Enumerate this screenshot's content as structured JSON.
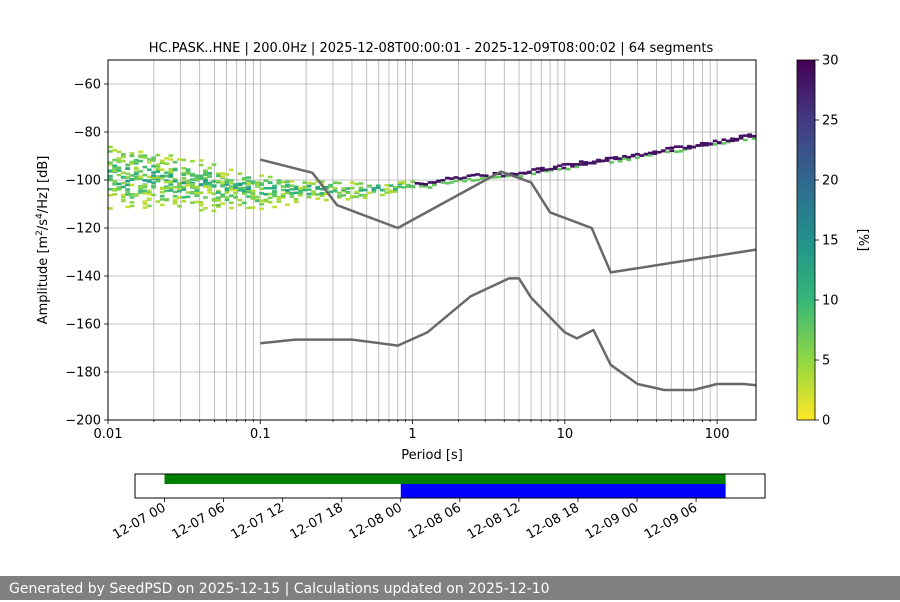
{
  "chart_data": [
    {
      "type": "heatmap",
      "title": "HC.PASK..HNE | 200.0Hz | 2025-12-08T00:00:01 - 2025-12-09T08:00:02 | 64 segments",
      "xlabel": "Period [s]",
      "ylabel_parts": [
        "Amplitude [m",
        "2",
        "/s",
        "4",
        "/Hz] [dB]"
      ],
      "x_scale": "log",
      "xlim": [
        0.01,
        180
      ],
      "ylim": [
        -200,
        -50
      ],
      "x_ticks": [
        0.01,
        0.1,
        1,
        10,
        100
      ],
      "x_tick_labels": [
        "0.01",
        "0.1",
        "1",
        "10",
        "100"
      ],
      "y_ticks": [
        -200,
        -180,
        -160,
        -140,
        -120,
        -100,
        -80,
        -60
      ],
      "y_tick_labels": [
        "−200",
        "−180",
        "−160",
        "−140",
        "−120",
        "−100",
        "−80",
        "−60"
      ],
      "grid": "vertical log lines",
      "colormap": "viridis_r",
      "colorbar": {
        "label": "[%]",
        "range": [
          0,
          30
        ],
        "ticks": [
          0,
          5,
          10,
          15,
          20,
          25,
          30
        ],
        "tick_labels": [
          "0",
          "5",
          "10",
          "15",
          "20",
          "25",
          "30"
        ],
        "colors": [
          "#fde725",
          "#90d743",
          "#35b779",
          "#21918c",
          "#31688e",
          "#443983",
          "#440154"
        ]
      },
      "density_band": [
        {
          "period": 0.01,
          "center": -98,
          "spread": 16
        },
        {
          "period": 0.02,
          "center": -100,
          "spread": 15
        },
        {
          "period": 0.05,
          "center": -103,
          "spread": 13
        },
        {
          "period": 0.1,
          "center": -104,
          "spread": 9
        },
        {
          "period": 0.2,
          "center": -104,
          "spread": 6
        },
        {
          "period": 0.5,
          "center": -104,
          "spread": 4
        },
        {
          "period": 1,
          "center": -102,
          "spread": 3
        },
        {
          "period": 2,
          "center": -99,
          "spread": 2
        },
        {
          "period": 5,
          "center": -97,
          "spread": 1.5
        },
        {
          "period": 10,
          "center": -94,
          "spread": 1.5
        },
        {
          "period": 20,
          "center": -91,
          "spread": 1.5
        },
        {
          "period": 50,
          "center": -87,
          "spread": 1.5
        },
        {
          "period": 100,
          "center": -84,
          "spread": 1.5
        },
        {
          "period": 180,
          "center": -81,
          "spread": 1.5
        }
      ],
      "series": [
        {
          "x": [
            0.1,
            0.22,
            0.32,
            0.8,
            3.8,
            6,
            8,
            15,
            20,
            180
          ],
          "y": [
            -91.5,
            -97,
            -110.5,
            -120,
            -96.5,
            -101,
            -113.5,
            -120,
            -138.5,
            -129
          ],
          "color": "#696969"
        },
        {
          "x": [
            0.1,
            0.17,
            0.4,
            0.8,
            1.25,
            2.4,
            4.3,
            5,
            6,
            10,
            12,
            15.4,
            20,
            30,
            45,
            70,
            100,
            150,
            180
          ],
          "y": [
            -168,
            -166.5,
            -166.5,
            -169,
            -163.5,
            -148.5,
            -141,
            -141,
            -149,
            -163.5,
            -166,
            -162.5,
            -177,
            -185,
            -187.5,
            -187.5,
            -185,
            -185,
            -185.5
          ]
        }
      ]
    },
    {
      "type": "timeline",
      "x_tick_labels": [
        "12-07 00",
        "12-07 06",
        "12-07 12",
        "12-07 18",
        "12-08 00",
        "12-08 06",
        "12-08 12",
        "12-08 18",
        "12-09 00",
        "12-09 06"
      ],
      "xlim": [
        "2025-12-06T21:00",
        "2025-12-09T13:00"
      ],
      "bars": [
        {
          "start": "2025-12-07T00:00",
          "end": "2025-12-09T09:00",
          "color": "#008000",
          "row": "top"
        },
        {
          "start": "2025-12-08T00:00",
          "end": "2025-12-09T09:00",
          "color": "#0000ff",
          "row": "bottom"
        }
      ]
    }
  ],
  "footer": {
    "text": "Generated by SeedPSD on 2025-12-15 | Calculations updated on 2025-12-10"
  }
}
